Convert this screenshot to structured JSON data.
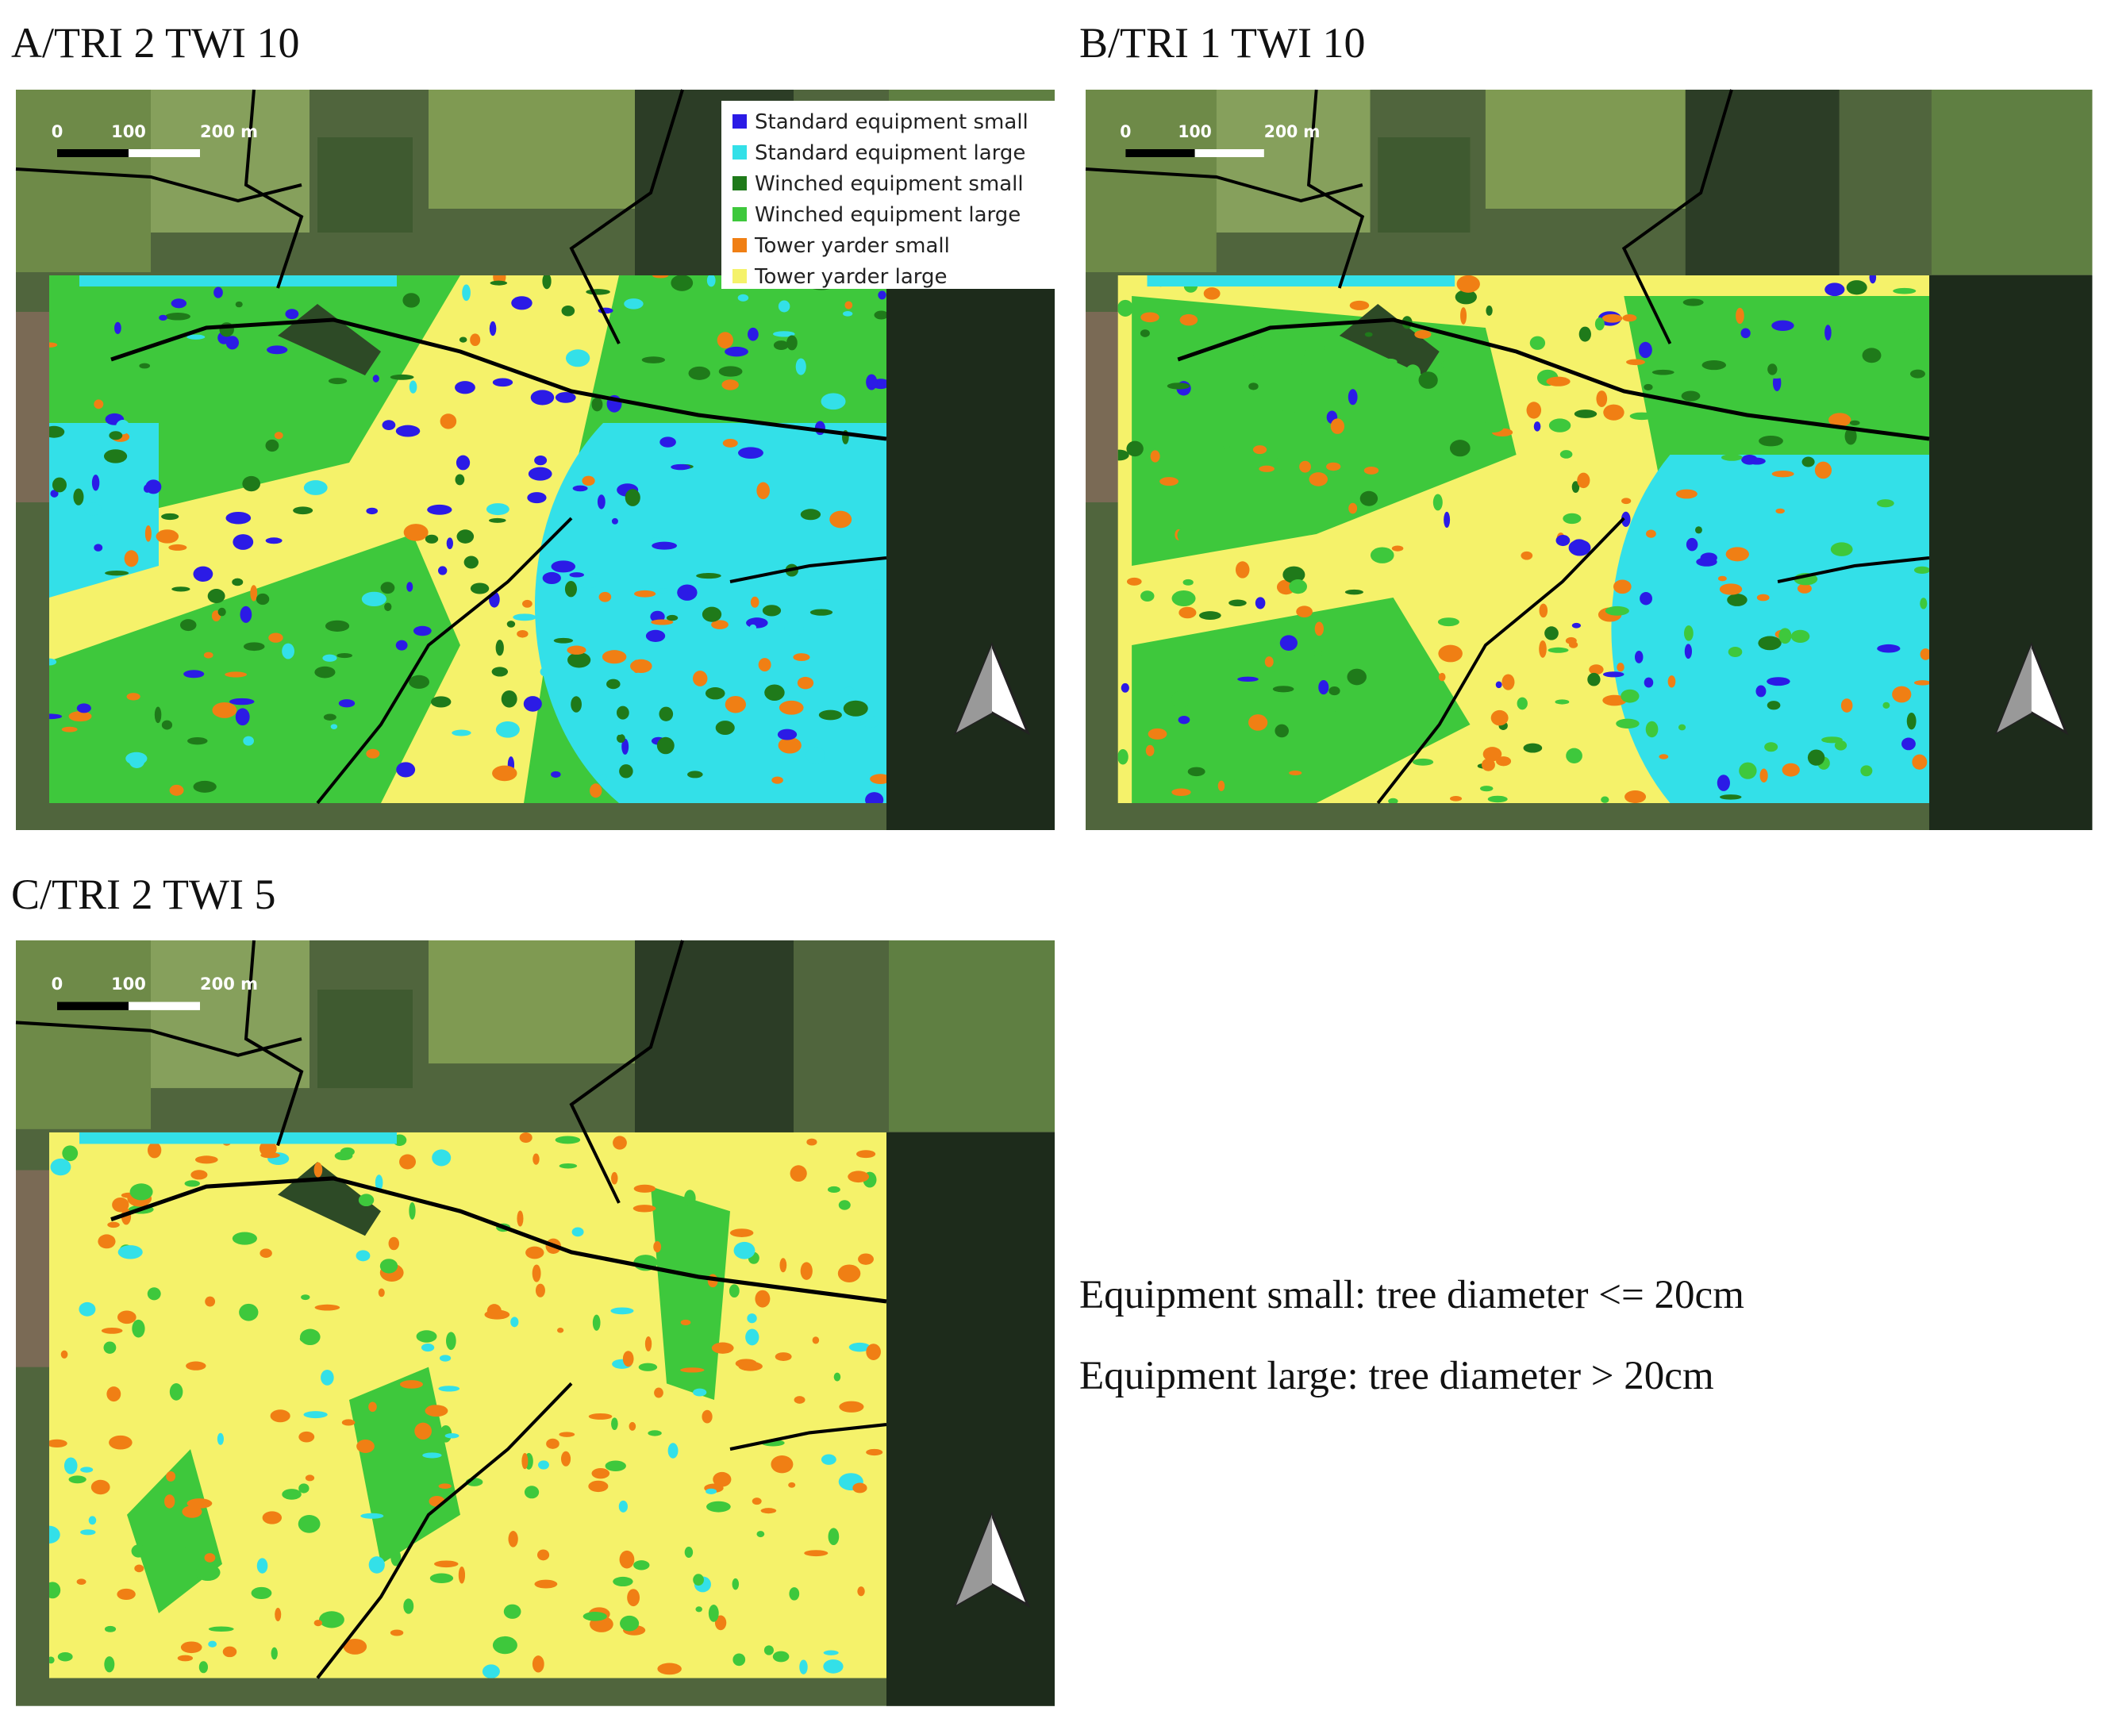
{
  "panels": [
    {
      "title": "A/TRI 2 TWI 10"
    },
    {
      "title": "B/TRI 1 TWI 10"
    },
    {
      "title": "C/TRI 2 TWI 5"
    }
  ],
  "scale_bar": {
    "labels": [
      "0",
      "100",
      "200 m"
    ]
  },
  "legend": [
    {
      "label": "Standard equipment small",
      "color": "#2b1be6"
    },
    {
      "label": "Standard equipment large",
      "color": "#33e0e8"
    },
    {
      "label": "Winched equipment small",
      "color": "#1f7a1a"
    },
    {
      "label": "Winched equipment large",
      "color": "#3ec83c"
    },
    {
      "label": "Tower yarder small",
      "color": "#f07f14"
    },
    {
      "label": "Tower yarder large",
      "color": "#f5f26a"
    }
  ],
  "notes": [
    "Equipment small: tree diameter <= 20cm",
    "Equipment large: tree diameter > 20cm"
  ]
}
